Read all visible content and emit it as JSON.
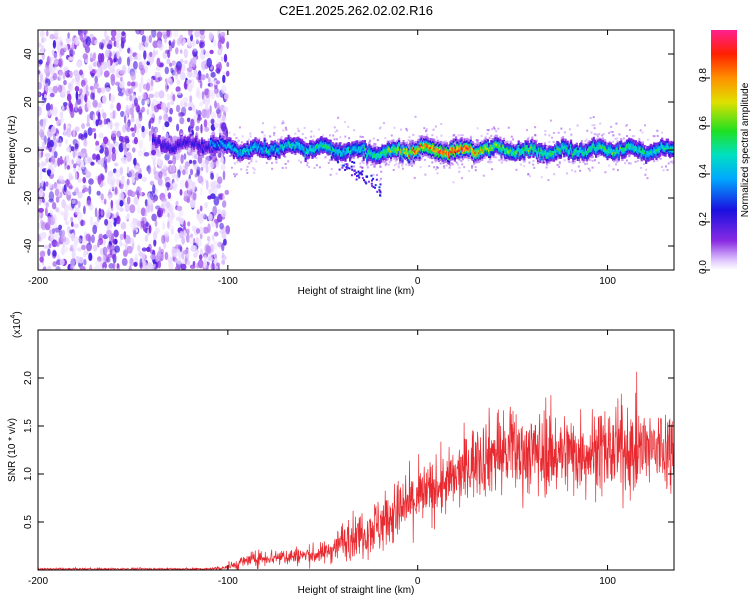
{
  "chart_data": [
    {
      "type": "heatmap",
      "title": "C2E1.2025.262.02.02.R16",
      "xlabel": "Height of straight line (km)",
      "ylabel": "Frequency (Hz)",
      "xlim": [
        -200,
        135
      ],
      "ylim": [
        -50,
        50
      ],
      "xticks": [
        -200,
        -100,
        0,
        100
      ],
      "yticks": [
        -40,
        -20,
        0,
        20,
        40
      ],
      "colorbar": {
        "label": "Normalized spectral amplitude",
        "range": [
          0,
          1
        ],
        "ticks": [
          "0.0",
          "0.2",
          "0.4",
          "0.6",
          "0.8"
        ]
      },
      "features": {
        "noise_region_x": [
          -200,
          -100
        ],
        "ridge_points_x": [
          -110,
          -90,
          -70,
          -50,
          -35,
          -20,
          0,
          20,
          40,
          60,
          80,
          100,
          120,
          135
        ],
        "ridge_points_freq": [
          3,
          0,
          2,
          1,
          0,
          -1,
          1,
          0,
          1,
          0,
          0,
          1,
          0,
          0
        ],
        "ridge_amplitude": [
          0.35,
          0.45,
          0.45,
          0.5,
          0.45,
          0.55,
          0.8,
          0.95,
          0.6,
          0.55,
          0.5,
          0.55,
          0.5,
          0.5
        ]
      }
    },
    {
      "type": "line",
      "xlabel": "Height of straight line (km)",
      "ylabel": "SNR (10 * v/v)",
      "yscale_label": "(x10",
      "yscale_exponent": "4",
      "xlim": [
        -200,
        135
      ],
      "ylim": [
        0,
        2.5
      ],
      "xticks": [
        -200,
        -100,
        0,
        100
      ],
      "yticks": [
        "0.5",
        "1.0",
        "1.5",
        "2.0"
      ],
      "color": "#e8292f",
      "envelope": {
        "x": [
          -200,
          -110,
          -100,
          -95,
          -90,
          -80,
          -70,
          -60,
          -50,
          -45,
          -40,
          -30,
          -20,
          -15,
          -10,
          -5,
          0,
          10,
          20,
          25,
          30,
          40,
          60,
          80,
          100,
          120,
          135
        ],
        "mean": [
          0.01,
          0.01,
          0.03,
          0.06,
          0.1,
          0.13,
          0.14,
          0.15,
          0.17,
          0.22,
          0.3,
          0.38,
          0.48,
          0.55,
          0.6,
          0.68,
          0.75,
          0.85,
          0.95,
          1.05,
          1.15,
          1.22,
          1.22,
          1.22,
          1.24,
          1.25,
          1.27
        ],
        "spread": [
          0.01,
          0.01,
          0.03,
          0.05,
          0.07,
          0.08,
          0.09,
          0.09,
          0.1,
          0.13,
          0.18,
          0.22,
          0.28,
          0.3,
          0.3,
          0.3,
          0.3,
          0.3,
          0.3,
          0.32,
          0.35,
          0.4,
          0.4,
          0.4,
          0.4,
          0.42,
          0.42
        ]
      }
    }
  ]
}
